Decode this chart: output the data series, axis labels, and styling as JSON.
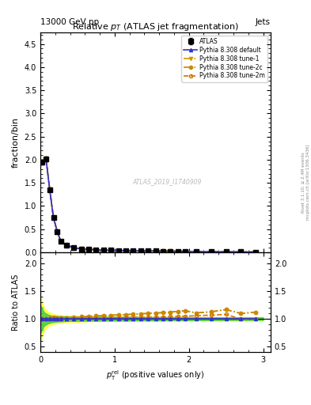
{
  "title": "Relative $p_{T}$ (ATLAS jet fragmentation)",
  "header_left": "13000 GeV pp",
  "header_right": "Jets",
  "ylabel_main": "fraction/bin",
  "ylabel_ratio": "Ratio to ATLAS",
  "xlabel": "$p_{\\mathrm{T}}^{\\mathrm{rel}}$ (positive values only)",
  "watermark": "ATLAS_2019_I1740909",
  "right_label": "mcplots.cern.ch [arXiv:1306.3436]",
  "right_label2": "Rivet 3.1.10, ≥ 2.4M events",
  "ylim_main": [
    0,
    4.75
  ],
  "ylim_ratio": [
    0.4,
    2.2
  ],
  "xlim": [
    0,
    3.1
  ],
  "yticks_main": [
    0.0,
    0.5,
    1.0,
    1.5,
    2.0,
    2.5,
    3.0,
    3.5,
    4.0,
    4.5
  ],
  "yticks_ratio": [
    0.5,
    1.0,
    1.5,
    2.0
  ],
  "xticks": [
    0,
    1,
    2,
    3
  ],
  "x_data": [
    0.025,
    0.075,
    0.125,
    0.175,
    0.225,
    0.275,
    0.35,
    0.45,
    0.55,
    0.65,
    0.75,
    0.85,
    0.95,
    1.05,
    1.15,
    1.25,
    1.35,
    1.45,
    1.55,
    1.65,
    1.75,
    1.85,
    1.95,
    2.1,
    2.3,
    2.5,
    2.7,
    2.9
  ],
  "atlas_y": [
    1.95,
    2.02,
    1.35,
    0.75,
    0.45,
    0.235,
    0.155,
    0.1,
    0.075,
    0.065,
    0.055,
    0.05,
    0.045,
    0.04,
    0.038,
    0.035,
    0.032,
    0.03,
    0.028,
    0.026,
    0.024,
    0.022,
    0.02,
    0.018,
    0.015,
    0.012,
    0.01,
    0.008
  ],
  "atlas_yerr": [
    0.05,
    0.05,
    0.04,
    0.03,
    0.02,
    0.01,
    0.008,
    0.005,
    0.004,
    0.003,
    0.003,
    0.003,
    0.002,
    0.002,
    0.002,
    0.002,
    0.002,
    0.002,
    0.001,
    0.001,
    0.001,
    0.001,
    0.001,
    0.001,
    0.001,
    0.001,
    0.001,
    0.001
  ],
  "default_y": [
    1.95,
    2.02,
    1.35,
    0.75,
    0.45,
    0.235,
    0.155,
    0.1,
    0.075,
    0.065,
    0.055,
    0.05,
    0.045,
    0.04,
    0.038,
    0.035,
    0.032,
    0.03,
    0.028,
    0.026,
    0.024,
    0.022,
    0.02,
    0.018,
    0.015,
    0.012,
    0.01,
    0.008
  ],
  "tune1_y": [
    1.96,
    2.03,
    1.36,
    0.76,
    0.46,
    0.24,
    0.158,
    0.103,
    0.078,
    0.068,
    0.058,
    0.053,
    0.048,
    0.043,
    0.041,
    0.038,
    0.035,
    0.033,
    0.031,
    0.029,
    0.027,
    0.025,
    0.023,
    0.02,
    0.017,
    0.014,
    0.011,
    0.009
  ],
  "tune2c_y": [
    1.97,
    2.04,
    1.37,
    0.77,
    0.46,
    0.24,
    0.158,
    0.103,
    0.078,
    0.068,
    0.058,
    0.053,
    0.048,
    0.043,
    0.041,
    0.038,
    0.035,
    0.033,
    0.031,
    0.029,
    0.027,
    0.025,
    0.023,
    0.02,
    0.017,
    0.014,
    0.011,
    0.009
  ],
  "tune2m_y": [
    1.96,
    2.03,
    1.36,
    0.76,
    0.455,
    0.238,
    0.156,
    0.101,
    0.076,
    0.066,
    0.056,
    0.051,
    0.046,
    0.041,
    0.039,
    0.036,
    0.033,
    0.031,
    0.029,
    0.027,
    0.025,
    0.023,
    0.021,
    0.019,
    0.016,
    0.013,
    0.01,
    0.008
  ],
  "ratio_default": [
    1.0,
    1.0,
    1.0,
    1.0,
    1.0,
    1.0,
    1.0,
    1.0,
    1.0,
    1.0,
    1.0,
    1.0,
    1.0,
    1.0,
    1.0,
    1.0,
    1.0,
    1.0,
    1.0,
    1.0,
    1.0,
    1.0,
    1.0,
    1.0,
    1.0,
    1.0,
    1.0,
    1.0
  ],
  "ratio_tune1": [
    1.005,
    1.005,
    1.007,
    1.013,
    1.022,
    1.021,
    1.019,
    1.03,
    1.04,
    1.046,
    1.055,
    1.06,
    1.067,
    1.075,
    1.079,
    1.086,
    1.094,
    1.1,
    1.107,
    1.115,
    1.125,
    1.136,
    1.15,
    1.11,
    1.13,
    1.17,
    1.1,
    1.125
  ],
  "ratio_tune2c": [
    1.01,
    1.01,
    1.015,
    1.027,
    1.022,
    1.021,
    1.019,
    1.03,
    1.04,
    1.046,
    1.055,
    1.06,
    1.067,
    1.075,
    1.079,
    1.086,
    1.094,
    1.1,
    1.107,
    1.115,
    1.125,
    1.136,
    1.15,
    1.11,
    1.13,
    1.17,
    1.1,
    1.125
  ],
  "ratio_tune2m": [
    1.005,
    1.005,
    1.007,
    1.013,
    1.011,
    1.013,
    1.006,
    1.01,
    1.013,
    1.015,
    1.018,
    1.02,
    1.022,
    1.025,
    1.026,
    1.029,
    1.031,
    1.033,
    1.036,
    1.038,
    1.042,
    1.045,
    1.05,
    1.06,
    1.07,
    1.083,
    1.0,
    1.0
  ],
  "color_default": "#3333cc",
  "color_tune1": "#cc9900",
  "color_tune2c": "#cc8800",
  "color_tune2m": "#cc7700",
  "band_yellow": "#ffff44",
  "band_green": "#44cc44",
  "band_x": [
    0.0,
    0.05,
    0.1,
    0.15,
    0.2,
    0.25,
    0.3,
    0.4,
    0.5,
    0.6,
    0.7,
    0.8,
    0.9,
    1.0,
    1.1,
    1.2,
    1.3,
    1.4,
    1.5,
    1.6,
    1.7,
    1.8,
    1.9,
    2.0,
    2.2,
    2.4,
    2.6,
    2.8,
    3.0
  ],
  "band_yellow_lo": [
    0.6,
    0.8,
    0.87,
    0.9,
    0.92,
    0.93,
    0.94,
    0.95,
    0.95,
    0.957,
    0.96,
    0.963,
    0.965,
    0.967,
    0.968,
    0.968,
    0.969,
    0.97,
    0.97,
    0.971,
    0.972,
    0.972,
    0.973,
    0.974,
    0.975,
    0.976,
    0.977,
    0.977,
    0.978
  ],
  "band_yellow_hi": [
    1.4,
    1.2,
    1.13,
    1.1,
    1.08,
    1.07,
    1.06,
    1.055,
    1.055,
    1.05,
    1.05,
    1.045,
    1.043,
    1.043,
    1.042,
    1.042,
    1.041,
    1.04,
    1.04,
    1.039,
    1.038,
    1.038,
    1.037,
    1.036,
    1.035,
    1.034,
    1.033,
    1.033,
    1.032
  ],
  "band_green_lo": [
    0.75,
    0.88,
    0.92,
    0.94,
    0.95,
    0.955,
    0.96,
    0.965,
    0.967,
    0.968,
    0.969,
    0.97,
    0.971,
    0.972,
    0.972,
    0.973,
    0.974,
    0.975,
    0.975,
    0.976,
    0.977,
    0.977,
    0.978,
    0.979,
    0.98,
    0.98,
    0.981,
    0.981,
    0.982
  ],
  "band_green_hi": [
    1.25,
    1.12,
    1.08,
    1.06,
    1.055,
    1.052,
    1.05,
    1.047,
    1.045,
    1.043,
    1.042,
    1.041,
    1.04,
    1.039,
    1.038,
    1.037,
    1.036,
    1.035,
    1.035,
    1.034,
    1.033,
    1.033,
    1.032,
    1.031,
    1.03,
    1.03,
    1.029,
    1.029,
    1.028
  ]
}
